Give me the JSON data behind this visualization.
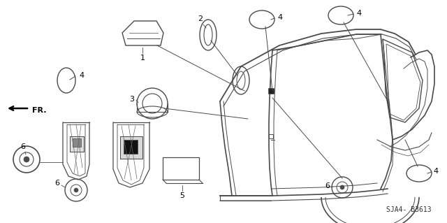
{
  "diagram_code": "SJA4- B3613",
  "background_color": "#ffffff",
  "line_color": "#4a4a4a",
  "figsize": [
    6.4,
    3.19
  ],
  "dpi": 100
}
